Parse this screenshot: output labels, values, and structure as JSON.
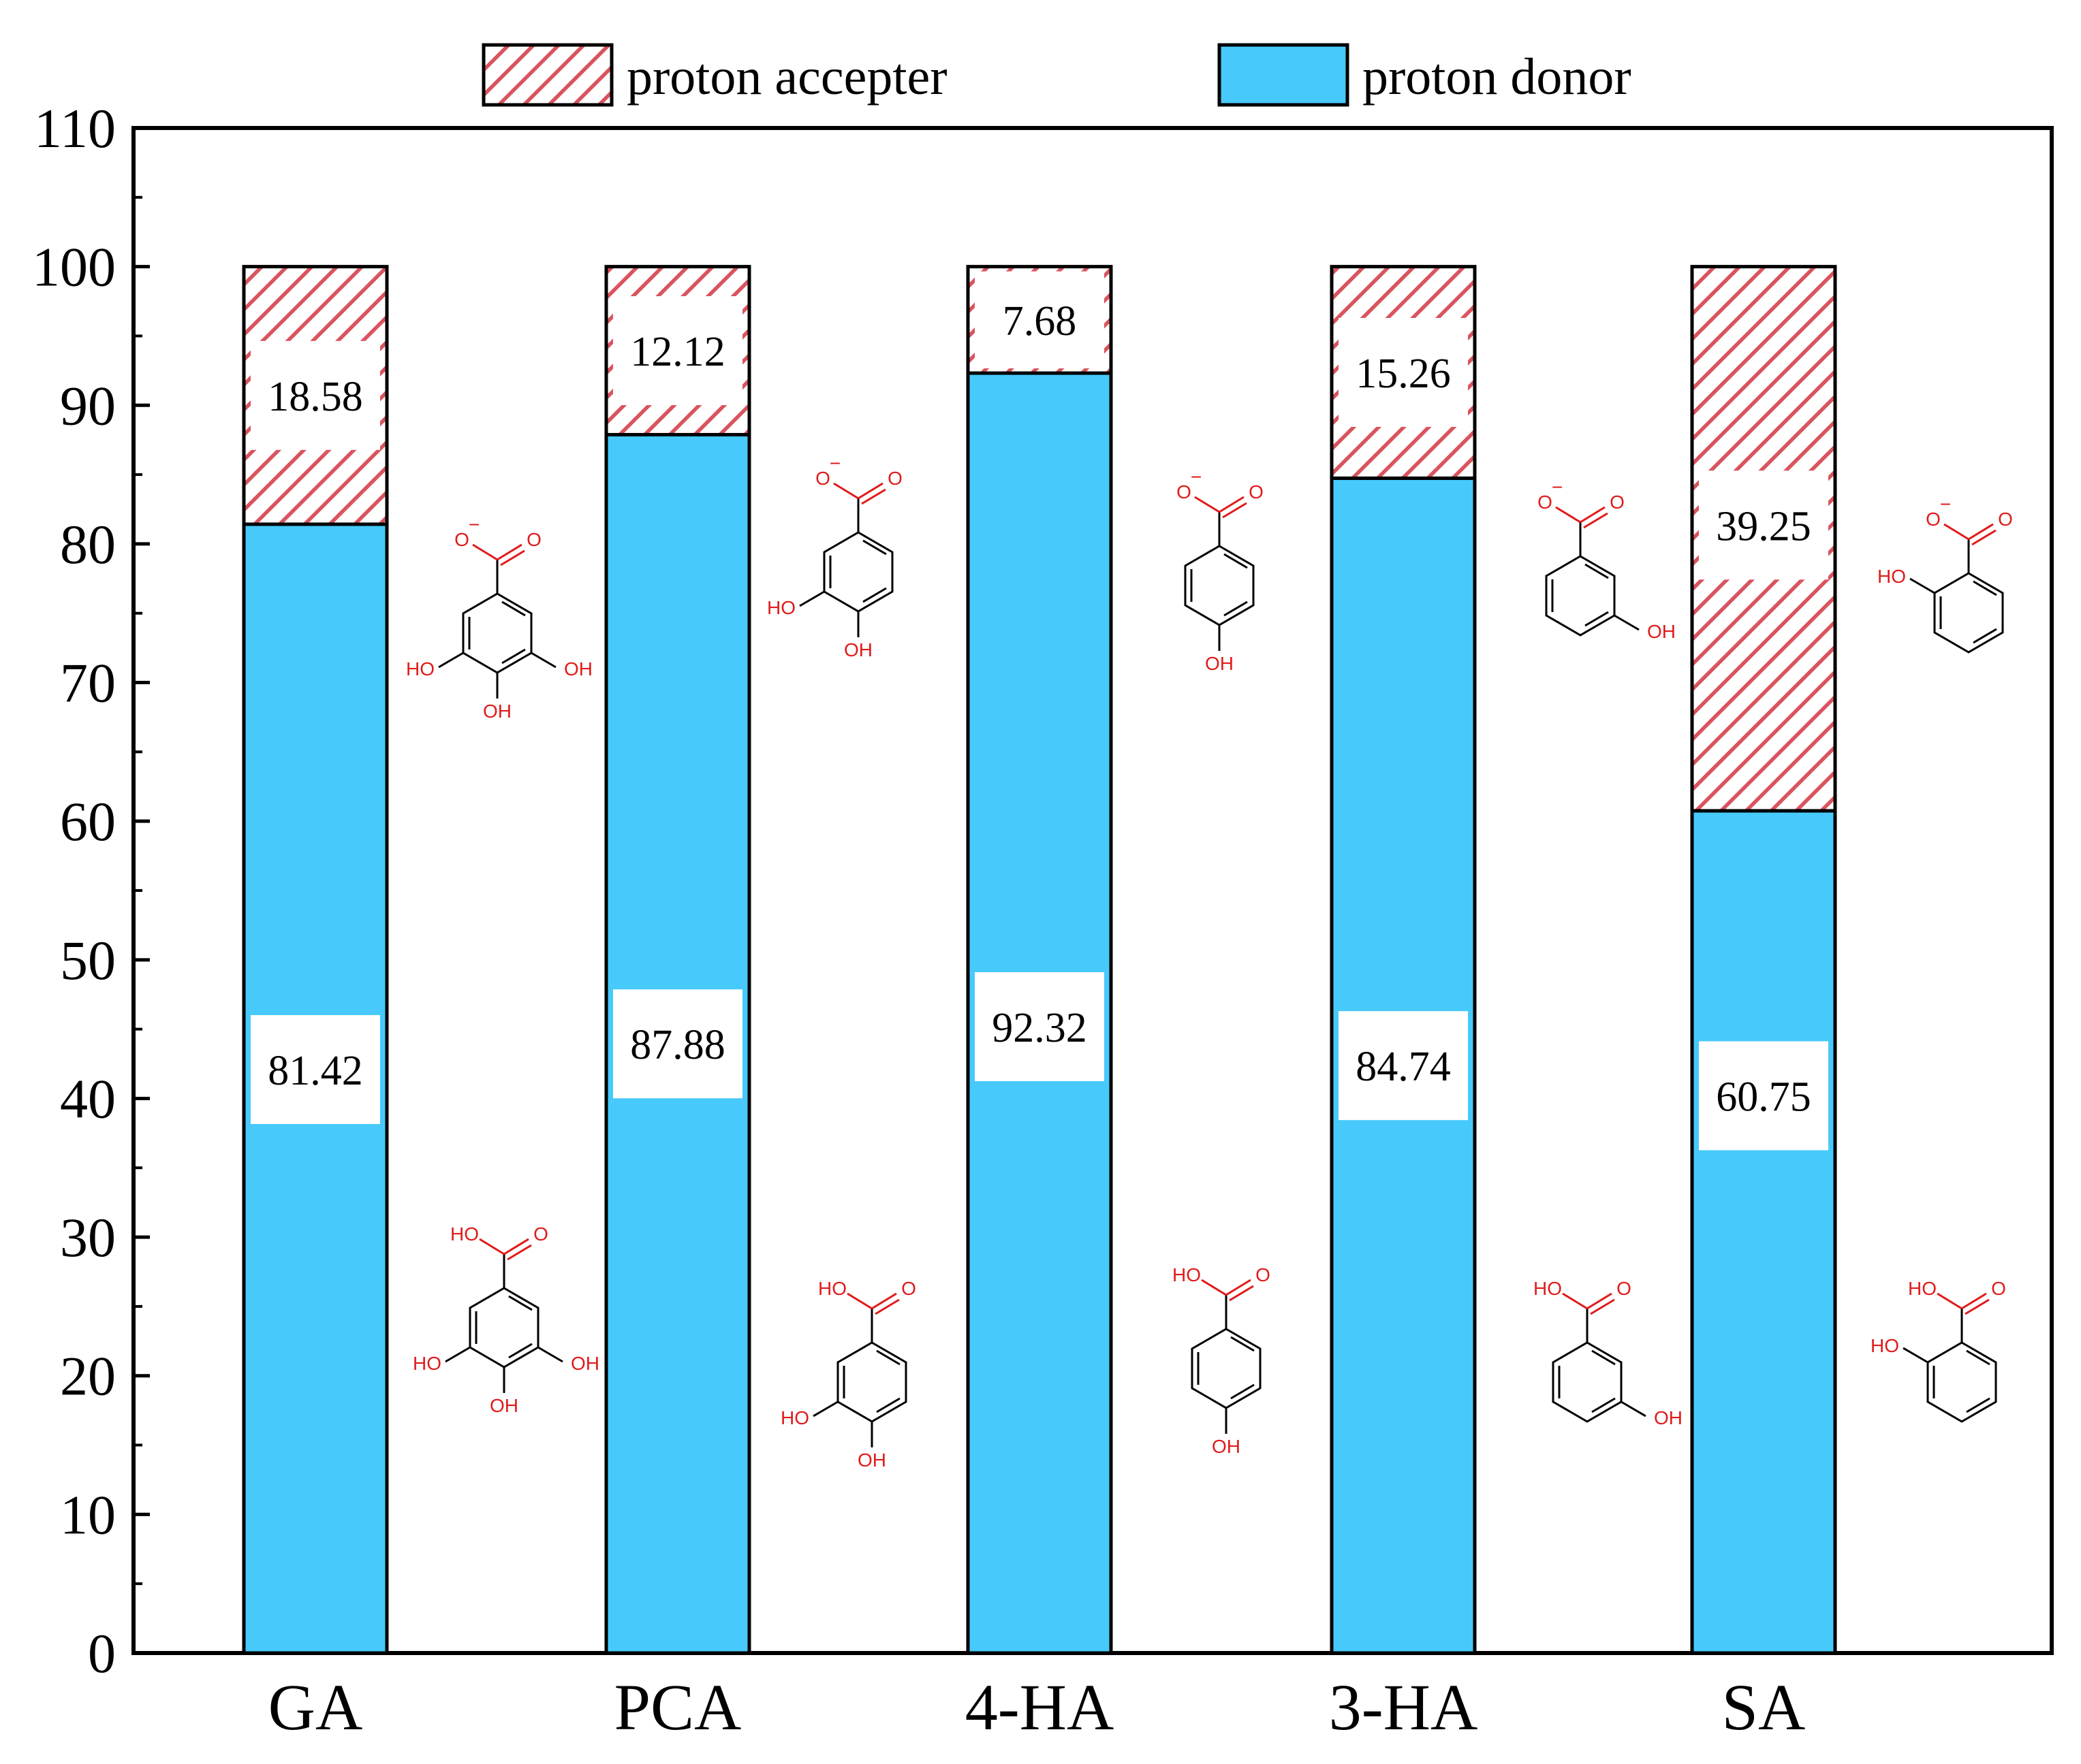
{
  "chart_data": {
    "type": "bar",
    "stacked": true,
    "categories": [
      "GA",
      "PCA",
      "4-HA",
      "3-HA",
      "SA"
    ],
    "series": [
      {
        "name": "proton donor",
        "values": [
          81.42,
          87.88,
          92.32,
          84.74,
          60.75
        ],
        "labels": [
          "81.42",
          "87.88",
          "92.32",
          "84.74",
          "60.75"
        ],
        "color": "#47c9fb",
        "pattern": "solid"
      },
      {
        "name": "proton accepter",
        "values": [
          18.58,
          12.12,
          7.68,
          15.26,
          39.25
        ],
        "labels": [
          "18.58",
          "12.12",
          "7.68",
          "15.26",
          "39.25"
        ],
        "color": "#d9545e",
        "pattern": "hatched"
      }
    ],
    "yticks": [
      "0",
      "10",
      "20",
      "30",
      "40",
      "50",
      "60",
      "70",
      "80",
      "90",
      "100",
      "110"
    ],
    "ylim": [
      0,
      110
    ],
    "xlabel": "",
    "ylabel": "",
    "title": "",
    "legend_position": "top",
    "grid": false
  },
  "structures": {
    "carboxylate_oxygen": "O",
    "carboxylate_charge": "−",
    "carbonyl_oxygen": "O",
    "acid_group": "HO",
    "hydroxyl_group": "OH",
    "hydroxyl_group_left": "HO",
    "color": "#e01b1b"
  }
}
